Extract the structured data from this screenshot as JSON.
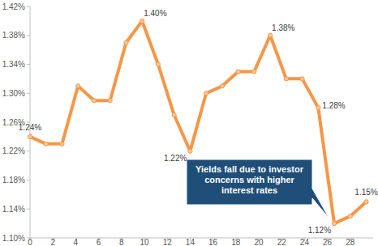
{
  "chart_data": {
    "type": "line",
    "x": [
      0,
      1.4,
      2.8,
      4.2,
      5.6,
      7,
      8.4,
      9.8,
      11.2,
      12.6,
      14,
      15.4,
      16.8,
      18.2,
      19.6,
      21,
      22.4,
      23.8,
      25.2,
      26.6,
      28,
      29.4
    ],
    "values": [
      1.24,
      1.23,
      1.23,
      1.31,
      1.29,
      1.29,
      1.37,
      1.4,
      1.34,
      1.27,
      1.22,
      1.3,
      1.31,
      1.33,
      1.33,
      1.38,
      1.32,
      1.32,
      1.28,
      1.12,
      1.13,
      1.15
    ],
    "value_labels": [
      "1.24%",
      null,
      null,
      null,
      null,
      null,
      null,
      "1.40%",
      null,
      null,
      "1.22%",
      null,
      null,
      null,
      null,
      "1.38%",
      null,
      null,
      "1.28%",
      "1.12%",
      null,
      "1.15%"
    ],
    "data_labels": true,
    "color": "#f79646",
    "marker": "circle",
    "xlim": [
      0,
      30
    ],
    "xticks": [
      0,
      2,
      4,
      6,
      8,
      10,
      12,
      14,
      16,
      18,
      20,
      22,
      24,
      26,
      28
    ],
    "ylim": [
      1.1,
      1.42
    ],
    "yticks": [
      {
        "value": 1.1,
        "label": "1.10%"
      },
      {
        "value": 1.14,
        "label": "1.14%"
      },
      {
        "value": 1.18,
        "label": "1.18%"
      },
      {
        "value": 1.22,
        "label": "1.22%"
      },
      {
        "value": 1.26,
        "label": "1.26%"
      },
      {
        "value": 1.3,
        "label": "1.30%"
      },
      {
        "value": 1.34,
        "label": "1.34%"
      },
      {
        "value": 1.38,
        "label": "1.38%"
      },
      {
        "value": 1.42,
        "label": "1.42%"
      }
    ],
    "grid": false,
    "annotation": {
      "text": "Yields fall due to investor concerns with higher interest rates",
      "x": 26.6,
      "y": 1.12
    }
  }
}
